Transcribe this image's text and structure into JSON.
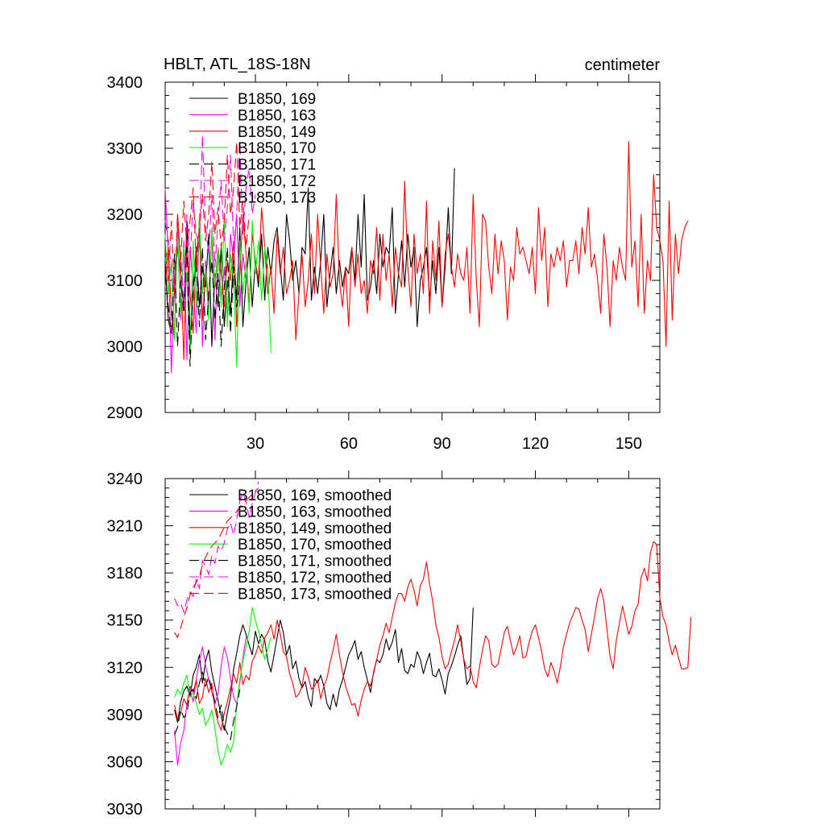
{
  "chart_data": [
    {
      "type": "line",
      "title": "HBLT, ATL_18S-18N",
      "units": "centimeter",
      "xlim": [
        1,
        160
      ],
      "ylim": [
        2900,
        3400
      ],
      "xticks": [
        30,
        60,
        90,
        120,
        150
      ],
      "xtick_labels": [
        "30",
        "60",
        "90",
        "120",
        "150"
      ],
      "yticks": [
        2900,
        3000,
        3100,
        3200,
        3300,
        3400
      ],
      "ytick_labels": [
        "2900",
        "3000",
        "3100",
        "3200",
        "3300",
        "3400"
      ],
      "legend": "top-left",
      "series": [
        {
          "name": "B1850, 169",
          "color": "#000000",
          "dash": "solid",
          "x_start": 1,
          "values": [
            3130,
            3040,
            3020,
            3080,
            3150,
            3110,
            3060,
            3190,
            3010,
            3090,
            3150,
            3060,
            3120,
            3090,
            3170,
            3000,
            3110,
            3060,
            3150,
            3030,
            3100,
            3050,
            3140,
            3070,
            3180,
            3030,
            3100,
            3150,
            3060,
            3130,
            3090,
            3170,
            3070,
            3150,
            3110,
            3160,
            3180,
            3120,
            3070,
            3200,
            3160,
            3100,
            3130,
            3080,
            3150,
            3140,
            3240,
            3070,
            3120,
            3080,
            3130,
            3200,
            3060,
            3110,
            3150,
            3080,
            3130,
            3090,
            3120,
            3110,
            3150,
            3100,
            3200,
            3120,
            3230,
            3070,
            3090,
            3130,
            3080,
            3170,
            3120,
            3150,
            3140,
            3210,
            3050,
            3110,
            3160,
            3090,
            3170,
            3120,
            3150,
            3030,
            3100,
            3120,
            3150,
            3070,
            3130,
            3080,
            3150,
            3060,
            3120,
            3210,
            3110,
            3270
          ]
        },
        {
          "name": "B1850, 163",
          "color": "#ff00ff",
          "dash": "solid",
          "x_start": 1,
          "values": [
            3240,
            3140,
            2960,
            3100,
            3170,
            3040,
            3160,
            2980,
            3150,
            3090,
            3020,
            3190,
            3000,
            3130,
            3060,
            3180,
            3010,
            3150,
            3070,
            3120,
            3040,
            3170,
            3130,
            3200,
            3060,
            3140,
            3100
          ]
        },
        {
          "name": "B1850, 149",
          "color": "#ff0000",
          "dash": "solid",
          "x_start": 1,
          "values": [
            3090,
            3150,
            3050,
            3010,
            3200,
            3120,
            2980,
            3160,
            3080,
            3020,
            3140,
            3180,
            3040,
            3110,
            3070,
            3170,
            3090,
            3150,
            3110,
            3060,
            3130,
            3100,
            3160,
            3030,
            3110,
            3200,
            3140,
            3060,
            3170,
            3130,
            3100,
            3210,
            3150,
            3080,
            3120,
            3050,
            3170,
            3110,
            3150,
            3080,
            3100,
            3130,
            3010,
            3080,
            3140,
            3060,
            3100,
            3170,
            3080,
            3200,
            3120,
            3050,
            3140,
            3090,
            3110,
            3230,
            3100,
            3060,
            3120,
            3030,
            3150,
            3090,
            3140,
            3080,
            3100,
            3050,
            3130,
            3110,
            3180,
            3070,
            3170,
            3100,
            3140,
            3060,
            3150,
            3110,
            3090,
            3250,
            3120,
            3060,
            3170,
            3110,
            3140,
            3080,
            3220,
            3050,
            3160,
            3100,
            3190,
            3060,
            3140,
            3170,
            3120,
            3090,
            3140,
            3110,
            3100,
            3150,
            3050,
            3230,
            3100,
            3030,
            3200,
            3190,
            3120,
            3080,
            3170,
            3110,
            3160,
            3130,
            3040,
            3120,
            3100,
            3180,
            3140,
            3150,
            3130,
            3110,
            3150,
            3080,
            3210,
            3130,
            3180,
            3060,
            3140,
            3120,
            3150,
            3130,
            3160,
            3090,
            3130,
            3130,
            3160,
            3110,
            3180,
            3140,
            3210,
            3120,
            3140,
            3100,
            3050,
            3170,
            3120,
            3030,
            3130,
            3100,
            3150,
            3120,
            3100,
            3310,
            3120,
            3160,
            3060,
            3200,
            3050,
            3130,
            3100,
            3260,
            3180,
            3160,
            3130,
            3000,
            3220,
            3040,
            3170,
            3110,
            3160,
            3180,
            3190
          ]
        },
        {
          "name": "B1850, 170",
          "color": "#00ff00",
          "dash": "solid",
          "x_start": 1,
          "values": [
            3170,
            3080,
            3130,
            3010,
            3180,
            3050,
            3150,
            3100,
            2990,
            3160,
            3060,
            3200,
            3080,
            3120,
            3040,
            3180,
            3090,
            3150,
            3060,
            3200,
            3030,
            3140,
            3100,
            2970,
            3160,
            3080,
            3130,
            3050,
            3190,
            3110,
            3160,
            3070,
            3150,
            3120,
            2990
          ]
        },
        {
          "name": "B1850, 171",
          "color": "#000000",
          "dash": "dash",
          "x_start": 1,
          "values": [
            3110,
            3060,
            3020,
            3140,
            3000,
            3100,
            3050,
            3160,
            2970,
            3090,
            3120,
            3030,
            3150,
            3010,
            3080,
            3130,
            3040,
            3110,
            3000,
            3090,
            3150,
            3020,
            3120,
            3060,
            3100
          ]
        },
        {
          "name": "B1850, 172",
          "color": "#ff00ff",
          "dash": "dash",
          "x_start": 1,
          "values": [
            3190,
            3160,
            3120,
            3080,
            3180,
            3140,
            3060,
            3200,
            3130,
            3220,
            3170,
            3150,
            3320,
            3180,
            3140,
            3230,
            3120,
            3190,
            3250,
            3160,
            3210,
            3290,
            3150,
            3200,
            3310,
            3170,
            3240,
            3270,
            3200,
            3230
          ]
        },
        {
          "name": "B1850, 173",
          "color": "#ff0000",
          "dash": "dash",
          "x_start": 1,
          "values": [
            3150,
            3100,
            3190,
            3080,
            3200,
            3130,
            3220,
            3150,
            3190,
            3240,
            3120,
            3180,
            3230,
            3160,
            3200,
            3280,
            3170,
            3210,
            3150,
            3190,
            3290,
            3200,
            3240,
            3310,
            3180,
            3220,
            3150,
            3200
          ]
        }
      ]
    },
    {
      "type": "line",
      "title": "",
      "xlim": [
        1,
        160
      ],
      "ylim": [
        3030,
        3240
      ],
      "xticks": [
        30,
        60,
        90,
        120,
        150
      ],
      "xtick_labels": [],
      "yticks": [
        3030,
        3060,
        3090,
        3120,
        3150,
        3180,
        3210,
        3240
      ],
      "ytick_labels": [
        "3030",
        "3060",
        "3090",
        "3120",
        "3150",
        "3180",
        "3210",
        "3240"
      ],
      "legend": "top-left",
      "series": [
        {
          "name": "B1850, 169, smoothed",
          "color": "#000000",
          "dash": "solid",
          "x_start": 4,
          "values": [
            3093,
            3085,
            3098,
            3105,
            3108,
            3101,
            3115,
            3120,
            3128,
            3110,
            3124,
            3131,
            3117,
            3108,
            3099,
            3089,
            3080,
            3091,
            3101,
            3119,
            3129,
            3140,
            3147,
            3141,
            3134,
            3128,
            3143,
            3135,
            3141,
            3137,
            3124,
            3117,
            3128,
            3139,
            3150,
            3142,
            3128,
            3134,
            3119,
            3124,
            3113,
            3107,
            3111,
            3101,
            3095,
            3113,
            3110,
            3115,
            3108,
            3097,
            3093,
            3103,
            3095,
            3106,
            3112,
            3120,
            3128,
            3132,
            3137,
            3125,
            3130,
            3120,
            3112,
            3104,
            3117,
            3125,
            3123,
            3128,
            3138,
            3131,
            3136,
            3144,
            3123,
            3132,
            3118,
            3116,
            3122,
            3120,
            3130,
            3125,
            3116,
            3123,
            3129,
            3115,
            3114,
            3119,
            3112,
            3103,
            3116,
            3121,
            3127,
            3134,
            3140,
            3125,
            3109,
            3113,
            3158
          ]
        },
        {
          "name": "B1850, 163, smoothed",
          "color": "#ff00ff",
          "dash": "solid",
          "x_start": 4,
          "values": [
            3080,
            3058,
            3072,
            3080,
            3097,
            3106,
            3098,
            3112,
            3124,
            3133,
            3121,
            3112,
            3104,
            3097,
            3103,
            3121,
            3133,
            3126,
            3113,
            3101,
            3097,
            3110,
            3126,
            3139
          ]
        },
        {
          "name": "B1850, 149, smoothed",
          "color": "#ff0000",
          "dash": "solid",
          "x_start": 4,
          "values": [
            3096,
            3087,
            3091,
            3100,
            3096,
            3108,
            3104,
            3112,
            3097,
            3101,
            3113,
            3104,
            3110,
            3094,
            3085,
            3080,
            3091,
            3098,
            3107,
            3116,
            3110,
            3123,
            3109,
            3115,
            3112,
            3124,
            3128,
            3134,
            3129,
            3139,
            3142,
            3147,
            3138,
            3150,
            3141,
            3130,
            3127,
            3116,
            3110,
            3101,
            3103,
            3108,
            3120,
            3114,
            3106,
            3108,
            3112,
            3100,
            3108,
            3113,
            3123,
            3131,
            3141,
            3128,
            3117,
            3108,
            3102,
            3096,
            3097,
            3089,
            3099,
            3106,
            3111,
            3108,
            3116,
            3125,
            3134,
            3140,
            3148,
            3142,
            3152,
            3161,
            3167,
            3167,
            3162,
            3171,
            3176,
            3169,
            3159,
            3172,
            3176,
            3187,
            3173,
            3162,
            3147,
            3139,
            3127,
            3119,
            3122,
            3130,
            3137,
            3147,
            3137,
            3125,
            3119,
            3121,
            3111,
            3107,
            3120,
            3131,
            3140,
            3137,
            3122,
            3120,
            3122,
            3132,
            3142,
            3146,
            3137,
            3128,
            3133,
            3140,
            3126,
            3127,
            3136,
            3143,
            3147,
            3139,
            3130,
            3119,
            3114,
            3123,
            3118,
            3110,
            3120,
            3133,
            3141,
            3148,
            3153,
            3158,
            3157,
            3150,
            3144,
            3130,
            3141,
            3152,
            3164,
            3170,
            3162,
            3144,
            3127,
            3119,
            3137,
            3148,
            3159,
            3150,
            3141,
            3146,
            3156,
            3160,
            3177,
            3183,
            3175,
            3193,
            3200,
            3198,
            3164,
            3152,
            3147,
            3136,
            3128,
            3134,
            3126,
            3119,
            3119,
            3120,
            3152
          ]
        },
        {
          "name": "B1850, 170, smoothed",
          "color": "#00ff00",
          "dash": "solid",
          "x_start": 4,
          "values": [
            3101,
            3106,
            3103,
            3110,
            3115,
            3101,
            3104,
            3097,
            3090,
            3094,
            3083,
            3087,
            3093,
            3081,
            3067,
            3058,
            3063,
            3071,
            3066,
            3073,
            3096,
            3112,
            3124,
            3133,
            3143,
            3158,
            3150,
            3143,
            3134,
            3125,
            3132,
            3139
          ]
        },
        {
          "name": "B1850, 171, smoothed",
          "color": "#000000",
          "dash": "dash",
          "x_start": 4,
          "values": [
            3077,
            3082,
            3093,
            3088,
            3091,
            3104,
            3106,
            3100,
            3110,
            3117,
            3108,
            3114,
            3106,
            3098,
            3088,
            3096,
            3082,
            3078,
            3074,
            3086,
            3095,
            3106
          ]
        },
        {
          "name": "B1850, 172, smoothed",
          "color": "#ff00ff",
          "dash": "dash",
          "x_start": 4,
          "values": [
            3164,
            3159,
            3161,
            3155,
            3163,
            3168,
            3165,
            3176,
            3170,
            3188,
            3184,
            3179,
            3191,
            3186,
            3197,
            3194,
            3199,
            3208,
            3212,
            3204,
            3214,
            3226,
            3231,
            3225,
            3215,
            3224,
            3231,
            3238
          ]
        },
        {
          "name": "B1850, 173, smoothed",
          "color": "#ff0000",
          "dash": "dash",
          "x_start": 4,
          "values": [
            3142,
            3139,
            3145,
            3152,
            3158,
            3166,
            3171,
            3174,
            3178,
            3185,
            3190,
            3194,
            3197,
            3199,
            3201,
            3205,
            3209,
            3213,
            3215,
            3217,
            3219,
            3222,
            3224,
            3226,
            3228,
            3230,
            3232,
            3234
          ]
        }
      ]
    }
  ]
}
